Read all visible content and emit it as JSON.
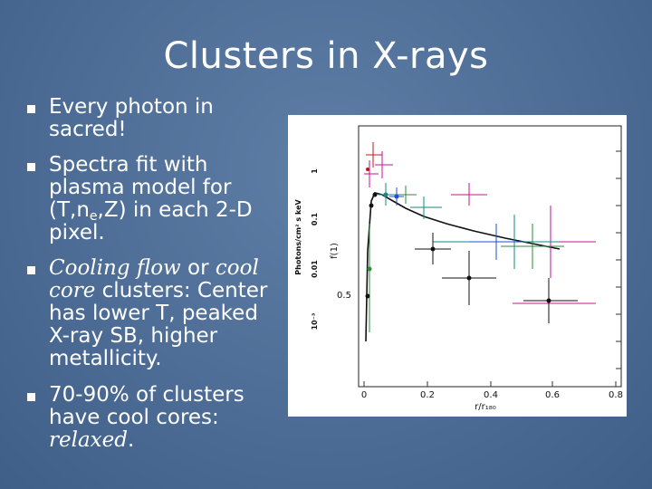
{
  "slide": {
    "title": "Clusters in X-rays",
    "bullets": [
      {
        "line1": "Every photon in",
        "line2": "sacred!"
      },
      {
        "line1": "Spectra fit with",
        "line2": "plasma model for",
        "line3_pre": "(T,n",
        "line3_sub": "e",
        "line3_post": ",Z) in each 2-D",
        "line4": "pixel."
      },
      {
        "italic1": "Cooling flow",
        "mid": " or ",
        "italic2": "cool",
        "italic3": "core",
        "rest1": " clusters:  Center",
        "rest2": "has lower T, peaked",
        "rest3": "X-ray SB, higher",
        "rest4": "metallicity."
      },
      {
        "line1": "70-90% of clusters",
        "line2": "have cool cores:",
        "italic_end": "relaxed",
        "end_punct": "."
      }
    ]
  },
  "figure": {
    "inset_ylabel": "Photons/cm² s keV",
    "inset_yticks": [
      "1",
      "0.1",
      "0.01",
      "10⁻³"
    ],
    "main_ylabel": "f(1)",
    "main_ytick": "0.5",
    "xticks": [
      "0",
      "0.2",
      "0.4",
      "0.6",
      "0.8"
    ],
    "xlabel": "r/r₁₈₀",
    "colors": {
      "magenta": "#c0169a",
      "teal": "#138a8a",
      "green": "#2c8a3a",
      "blue": "#1f4fd0",
      "black": "#111111",
      "red": "#c01818"
    }
  }
}
